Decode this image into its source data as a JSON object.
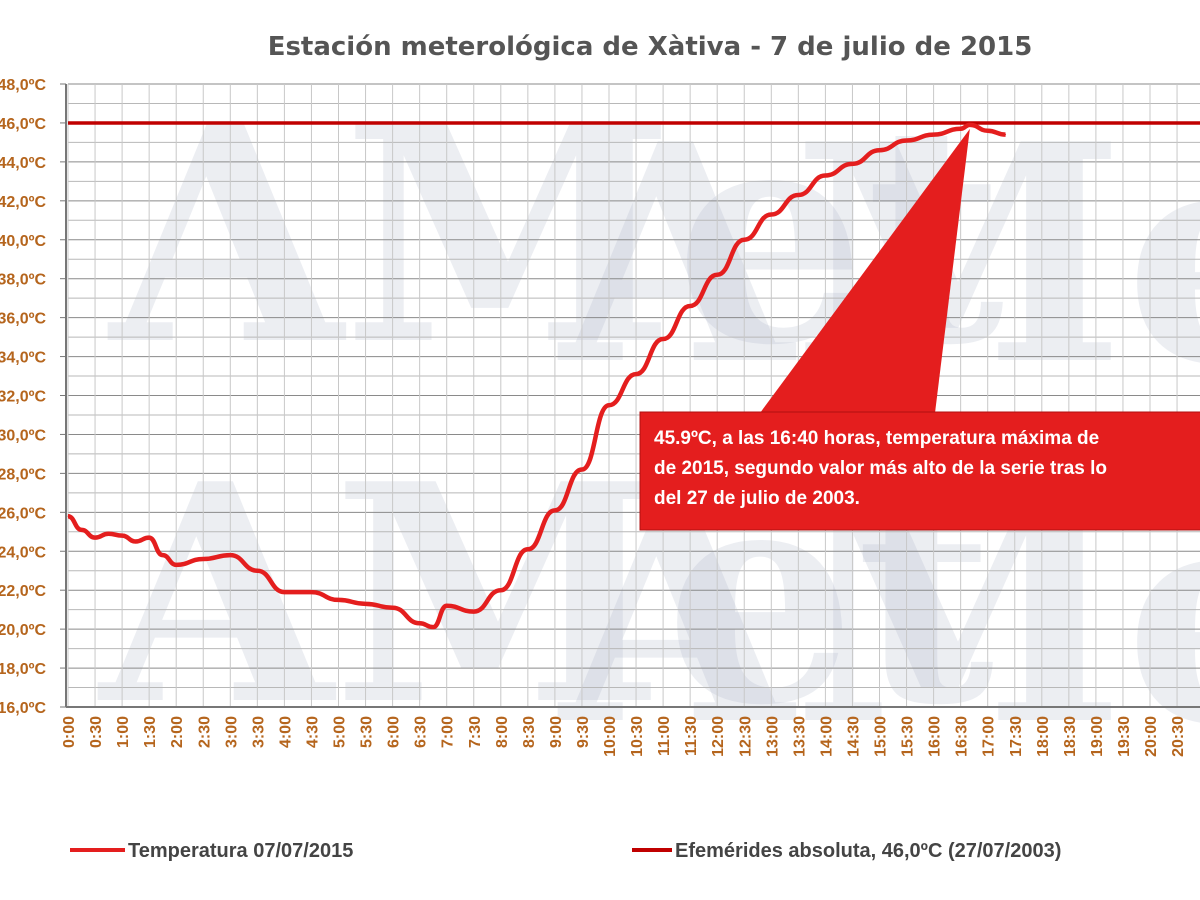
{
  "chart_data": {
    "type": "line",
    "title": "Estación meterológica de Xàtiva - 7 de julio de 2015",
    "xlabel": "",
    "ylabel": "",
    "ylim": [
      16,
      48
    ],
    "y_ticks": [
      "48,0ºC",
      "46,0ºC",
      "44,0ºC",
      "42,0ºC",
      "40,0ºC",
      "38,0ºC",
      "36,0ºC",
      "34,0ºC",
      "32,0ºC",
      "30,0ºC",
      "28,0ºC",
      "26,0ºC",
      "24,0ºC",
      "22,0ºC",
      "20,0ºC",
      "18,0ºC",
      "16,0ºC"
    ],
    "x_ticks": [
      "0:00",
      "0:30",
      "1:00",
      "1:30",
      "2:00",
      "2:30",
      "3:00",
      "3:30",
      "4:00",
      "4:30",
      "5:00",
      "5:30",
      "6:00",
      "6:30",
      "7:00",
      "7:30",
      "8:00",
      "8:30",
      "9:00",
      "9:30",
      "10:00",
      "10:30",
      "11:00",
      "11:30",
      "12:00",
      "12:30",
      "13:00",
      "13:30",
      "14:00",
      "14:30",
      "15:00",
      "15:30",
      "16:00",
      "16:30",
      "17:00",
      "17:30",
      "18:00",
      "18:30",
      "19:00",
      "19:30",
      "20:00",
      "20:30"
    ],
    "grid": true,
    "legend_position": "bottom",
    "series": [
      {
        "name": "Temperatura 07/07/2015",
        "color": "#e41e1e",
        "x_hours": [
          0,
          0.25,
          0.5,
          0.75,
          1,
          1.25,
          1.5,
          1.75,
          2,
          2.5,
          3,
          3.5,
          4,
          4.5,
          5,
          5.5,
          6,
          6.5,
          6.75,
          7,
          7.5,
          8,
          8.5,
          9,
          9.5,
          10,
          10.5,
          11,
          11.5,
          12,
          12.5,
          13,
          13.5,
          14,
          14.5,
          15,
          15.5,
          16,
          16.5,
          16.67,
          17,
          17.33
        ],
        "values": [
          25.8,
          25.1,
          24.7,
          24.9,
          24.8,
          24.5,
          24.7,
          23.8,
          23.3,
          23.6,
          23.8,
          23.0,
          21.9,
          21.9,
          21.5,
          21.3,
          21.1,
          20.3,
          20.1,
          21.2,
          20.9,
          22.0,
          24.1,
          26.1,
          28.2,
          31.5,
          33.1,
          34.9,
          36.6,
          38.2,
          40.0,
          41.3,
          42.3,
          43.3,
          43.9,
          44.6,
          45.1,
          45.4,
          45.7,
          45.9,
          45.6,
          45.4
        ]
      },
      {
        "name": "Efemérides absoluta, 46,0ºC (27/07/2003)",
        "color": "#c00000",
        "constant": 46.0
      }
    ],
    "annotation": {
      "lines": [
        "45.9ºC, a las 16:40 horas, temperatura máxima de",
        "de 2015, segundo valor más alto de la serie tras lo",
        "del 27 de julio de 2003."
      ],
      "x_hours": 16.67,
      "value": 45.9
    }
  },
  "watermark": "AMet"
}
